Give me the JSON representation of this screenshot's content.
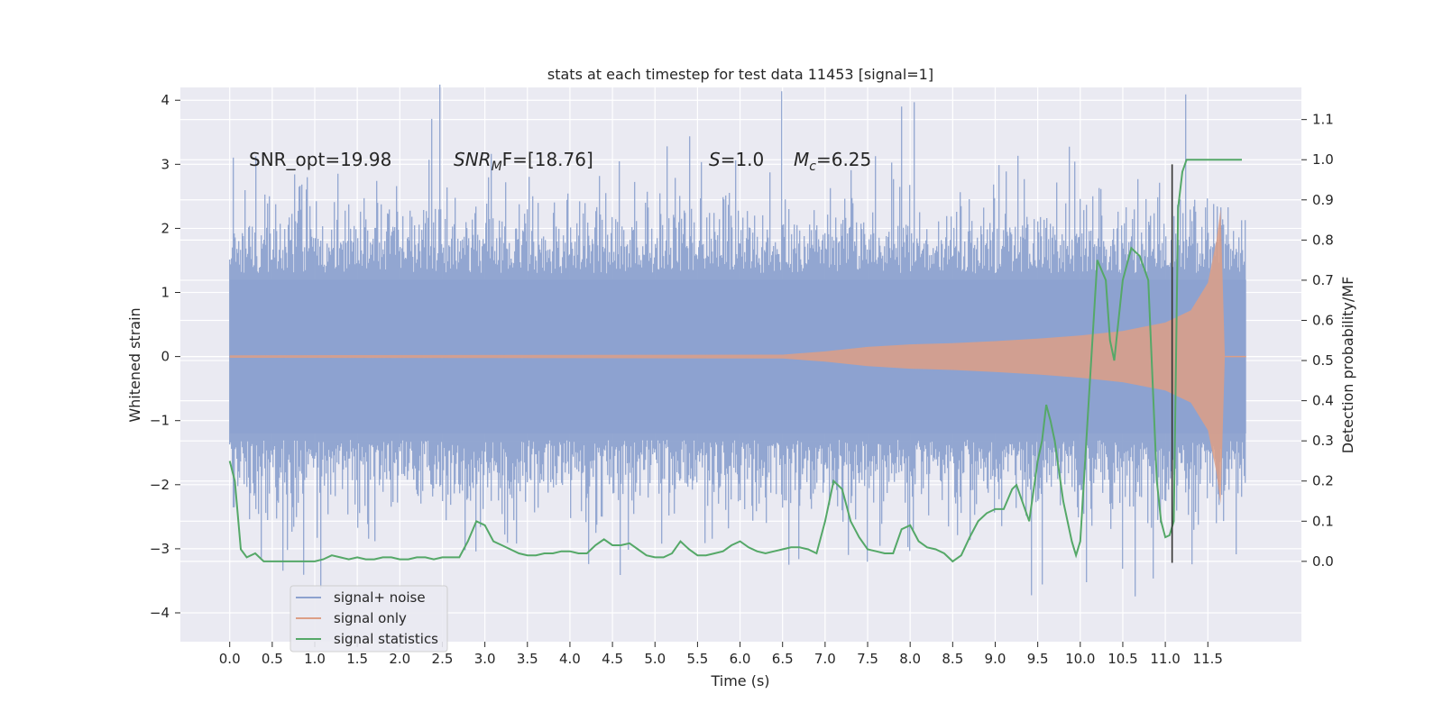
{
  "chart_data": {
    "type": "line",
    "title": "stats at each timestep for test data 11453 [signal=1]",
    "xlabel": "Time (s)",
    "ylabel": "Whitened strain",
    "y2label": "Detection probability/MF",
    "xlim": [
      -0.58,
      12.6
    ],
    "ylim": [
      -4.45,
      4.2
    ],
    "y2lim": [
      -0.2,
      1.18
    ],
    "x_ticks": [
      "0.0",
      "0.5",
      "1.0",
      "1.5",
      "2.0",
      "2.5",
      "3.0",
      "3.5",
      "4.0",
      "4.5",
      "5.0",
      "5.5",
      "6.0",
      "6.5",
      "7.0",
      "7.5",
      "8.0",
      "8.5",
      "9.0",
      "9.5",
      "10.0",
      "10.5",
      "11.0",
      "11.5"
    ],
    "y_ticks": [
      "4",
      "3",
      "2",
      "1",
      "0",
      "−1",
      "−2",
      "−3",
      "−4"
    ],
    "y2_ticks": [
      "1.1",
      "1.0",
      "0.9",
      "0.8",
      "0.7",
      "0.6",
      "0.5",
      "0.4",
      "0.3",
      "0.2",
      "0.1",
      "0.0"
    ],
    "grid": true,
    "legend_position": "lower-left",
    "annotations": {
      "snr_opt": "SNR_opt=19.98",
      "snr_mf_prefix": "SNR",
      "snr_mf_sub": "M",
      "snr_mf_suffix": "F=[18.76]",
      "s_var": "S",
      "s_val": "=1.0",
      "mc_var": "M",
      "mc_sub": "c",
      "mc_val": "=6.25"
    },
    "series": [
      {
        "name": "signal+ noise",
        "color": "#8da2cf",
        "axis": "left",
        "description": "whitened strain, noise band spanning roughly -2.5 to +2.5 with spikes up to about ±4",
        "t_range": [
          0.0,
          11.95
        ]
      },
      {
        "name": "signal only",
        "color": "#dd9f86",
        "axis": "left",
        "envelope_t": [
          0.0,
          6.5,
          7.0,
          7.5,
          8.0,
          8.5,
          9.0,
          9.5,
          10.0,
          10.5,
          11.0,
          11.3,
          11.5,
          11.6,
          11.65,
          11.7
        ],
        "envelope_amp": [
          0.02,
          0.03,
          0.08,
          0.15,
          0.19,
          0.21,
          0.24,
          0.28,
          0.33,
          0.4,
          0.53,
          0.72,
          1.15,
          1.8,
          2.3,
          0.0
        ]
      },
      {
        "name": "signal statistics",
        "color": "#55a868",
        "axis": "right",
        "x": [
          0.0,
          0.06,
          0.13,
          0.2,
          0.3,
          0.4,
          0.5,
          0.6,
          0.7,
          0.8,
          0.9,
          1.0,
          1.1,
          1.2,
          1.3,
          1.4,
          1.5,
          1.6,
          1.7,
          1.8,
          1.9,
          2.0,
          2.1,
          2.2,
          2.3,
          2.4,
          2.5,
          2.6,
          2.7,
          2.8,
          2.9,
          3.0,
          3.1,
          3.2,
          3.3,
          3.4,
          3.5,
          3.6,
          3.7,
          3.8,
          3.9,
          4.0,
          4.1,
          4.2,
          4.3,
          4.4,
          4.5,
          4.6,
          4.7,
          4.8,
          4.9,
          5.0,
          5.1,
          5.2,
          5.3,
          5.4,
          5.5,
          5.6,
          5.7,
          5.8,
          5.9,
          6.0,
          6.1,
          6.2,
          6.3,
          6.4,
          6.5,
          6.6,
          6.7,
          6.8,
          6.9,
          7.0,
          7.1,
          7.2,
          7.3,
          7.4,
          7.5,
          7.6,
          7.7,
          7.8,
          7.9,
          8.0,
          8.1,
          8.2,
          8.3,
          8.4,
          8.5,
          8.6,
          8.7,
          8.8,
          8.9,
          9.0,
          9.1,
          9.2,
          9.25,
          9.3,
          9.4,
          9.5,
          9.55,
          9.6,
          9.65,
          9.7,
          9.8,
          9.9,
          9.95,
          10.0,
          10.1,
          10.2,
          10.3,
          10.35,
          10.4,
          10.5,
          10.6,
          10.7,
          10.8,
          10.9,
          10.95,
          11.0,
          11.05,
          11.1,
          11.15,
          11.2,
          11.25,
          11.3,
          11.5,
          11.7,
          11.9
        ],
        "values": [
          0.25,
          0.2,
          0.03,
          0.01,
          0.02,
          0.0,
          0.0,
          0.0,
          0.0,
          0.0,
          0.0,
          0.0,
          0.005,
          0.015,
          0.01,
          0.005,
          0.01,
          0.005,
          0.005,
          0.01,
          0.01,
          0.005,
          0.005,
          0.01,
          0.01,
          0.005,
          0.01,
          0.01,
          0.01,
          0.05,
          0.1,
          0.09,
          0.05,
          0.04,
          0.03,
          0.02,
          0.015,
          0.015,
          0.02,
          0.02,
          0.025,
          0.025,
          0.02,
          0.02,
          0.04,
          0.055,
          0.04,
          0.04,
          0.045,
          0.03,
          0.015,
          0.01,
          0.01,
          0.02,
          0.05,
          0.03,
          0.015,
          0.015,
          0.02,
          0.025,
          0.04,
          0.05,
          0.035,
          0.025,
          0.02,
          0.025,
          0.03,
          0.035,
          0.035,
          0.03,
          0.02,
          0.1,
          0.2,
          0.18,
          0.1,
          0.06,
          0.03,
          0.025,
          0.02,
          0.02,
          0.08,
          0.09,
          0.05,
          0.035,
          0.03,
          0.02,
          0.0,
          0.015,
          0.06,
          0.1,
          0.12,
          0.13,
          0.13,
          0.18,
          0.19,
          0.16,
          0.1,
          0.25,
          0.3,
          0.39,
          0.35,
          0.3,
          0.15,
          0.05,
          0.015,
          0.05,
          0.4,
          0.75,
          0.7,
          0.55,
          0.5,
          0.7,
          0.78,
          0.76,
          0.7,
          0.2,
          0.1,
          0.06,
          0.065,
          0.1,
          0.88,
          0.97,
          1.0,
          1.0,
          1.0,
          1.0,
          1.0
        ]
      }
    ],
    "vertical_line": {
      "x": 11.08,
      "y_top": 3.0,
      "y_bottom": -3.22,
      "color": "#333333"
    },
    "legend": [
      "signal+ noise",
      "signal only",
      "signal statistics"
    ]
  }
}
